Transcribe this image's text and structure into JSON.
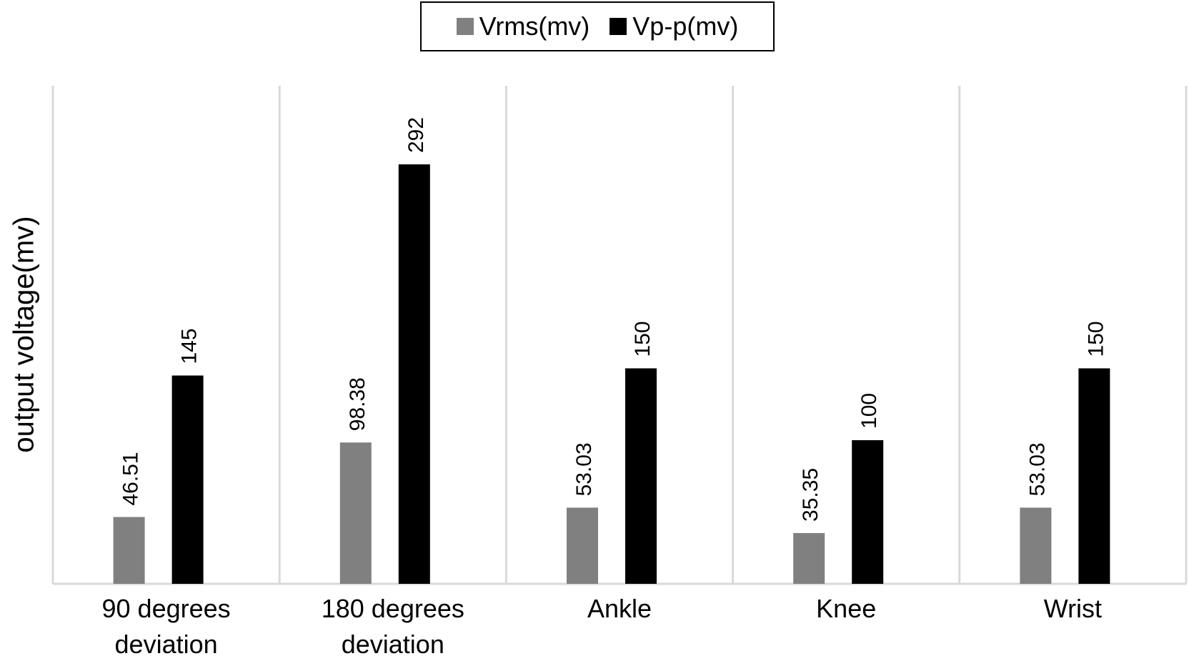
{
  "chart_data": {
    "type": "bar",
    "title": "",
    "xlabel": "",
    "ylabel": "output voltage(mv)",
    "categories": [
      [
        "90 degrees",
        "deviation"
      ],
      [
        "180 degrees",
        "deviation"
      ],
      [
        "Ankle"
      ],
      [
        "Knee"
      ],
      [
        "Wrist"
      ]
    ],
    "series": [
      {
        "name": "Vrms(mv)",
        "color": "#808080",
        "values": [
          46.51,
          98.38,
          53.03,
          35.35,
          53.03
        ],
        "labels": [
          "46.51",
          "98.38",
          "53.03",
          "35.35",
          "53.03"
        ]
      },
      {
        "name": "Vp-p(mv)",
        "color": "#000000",
        "values": [
          145,
          292,
          150,
          100,
          150
        ],
        "labels": [
          "145",
          "292",
          "150",
          "100",
          "150"
        ]
      }
    ],
    "ylim": [
      0,
      350
    ],
    "grid": "vertical category separators",
    "legend": "top-center",
    "data_labels": "rotated vertical above bars"
  }
}
